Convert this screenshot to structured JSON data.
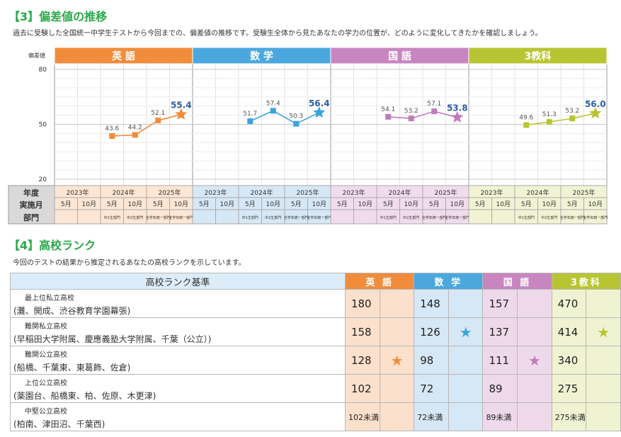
{
  "section3": {
    "title": "【3】偏差値の推移",
    "description": "過去に受験した全国統一中学生テストから今回までの、偏差値の推移です。受験生全体から見たあなたの学力の位置が、どのように変化してきたかを確認しましょう。"
  },
  "chart_data": {
    "type": "line",
    "ylabel": "偏差値",
    "ylim": [
      20,
      80
    ],
    "y_ticks": [
      "80",
      "50",
      "20"
    ],
    "row_labels": {
      "year": "年度",
      "month": "実施月",
      "division": "部門"
    },
    "years": [
      "2023年",
      "2024年",
      "2025年"
    ],
    "months": [
      "5月",
      "10月",
      "5月",
      "10月",
      "5月",
      "10月"
    ],
    "divisions": [
      "",
      "",
      "中1生部門",
      "中2生部門",
      "全学年統一部門",
      "全学年統一部門"
    ],
    "series": [
      {
        "name": "英 語",
        "color": "#f08c3c",
        "header_color": "#f08c3c",
        "col_bg": "#fde6d4",
        "values": [
          null,
          null,
          43.6,
          44.2,
          52.1,
          55.4
        ],
        "labels": [
          "",
          "",
          "43.6",
          "44.2",
          "52.1",
          "55.4"
        ]
      },
      {
        "name": "数 学",
        "color": "#3ba3dc",
        "header_color": "#4aa8de",
        "col_bg": "#d6e8f6",
        "values": [
          null,
          null,
          51.7,
          57.4,
          50.3,
          56.4
        ],
        "labels": [
          "",
          "",
          "51.7",
          "57.4",
          "50.3",
          "56.4"
        ]
      },
      {
        "name": "国 語",
        "color": "#c07cb8",
        "header_color": "#c886c0",
        "col_bg": "#f0dced",
        "values": [
          null,
          null,
          54.1,
          53.2,
          57.1,
          53.8
        ],
        "labels": [
          "",
          "",
          "54.1",
          "53.2",
          "57.1",
          "53.8"
        ]
      },
      {
        "name": "3教科",
        "color": "#b8c430",
        "header_color": "#b8c532",
        "col_bg": "#f1f4d4",
        "values": [
          null,
          null,
          49.6,
          51.3,
          53.2,
          56.0
        ],
        "labels": [
          "",
          "",
          "49.6",
          "51.3",
          "53.2",
          "56.0"
        ]
      }
    ],
    "label_colors": {
      "normal": "#555555",
      "latest": "#2e5fa0"
    },
    "grid": true
  },
  "section4": {
    "title": "【4】高校ランク",
    "description": "今回のテストの結果から推定されるあなたの高校ランクを示しています。",
    "criteria_header": "高校ランク基準",
    "subjects": [
      {
        "name": "英 語",
        "color": "#f08c3c",
        "cls": "en"
      },
      {
        "name": "数 学",
        "color": "#4aa8de",
        "cls": "ma"
      },
      {
        "name": "国 語",
        "color": "#c886c0",
        "cls": "jp"
      },
      {
        "name": "3教科",
        "color": "#b8c532",
        "cls": "al"
      }
    ],
    "rows": [
      {
        "rank": "最上位私立高校",
        "examples": "(灘、開成、渋谷教育学園幕張)",
        "values": [
          "180",
          "148",
          "157",
          "470"
        ],
        "stars": [
          "",
          "",
          "",
          ""
        ]
      },
      {
        "rank": "難関私立高校",
        "examples": "(早稲田大学附属、慶應義塾大学附属、千葉（公立）)",
        "values": [
          "158",
          "126",
          "137",
          "414"
        ],
        "stars": [
          "",
          "★",
          "",
          "★"
        ]
      },
      {
        "rank": "難関公立高校",
        "examples": "(船橋、千葉東、東葛飾、佐倉)",
        "values": [
          "128",
          "98",
          "111",
          "340"
        ],
        "stars": [
          "★",
          "",
          "★",
          ""
        ]
      },
      {
        "rank": "上位公立高校",
        "examples": "(薬園台、船橋東、柏、佐原、木更津)",
        "values": [
          "102",
          "72",
          "89",
          "275"
        ],
        "stars": [
          "",
          "",
          "",
          ""
        ]
      },
      {
        "rank": "中堅公立高校",
        "examples": "(柏南、津田沼、千葉西)",
        "values": [
          "102未満",
          "72未満",
          "89未満",
          "275未満"
        ],
        "stars": [
          "",
          "",
          "",
          ""
        ]
      }
    ]
  }
}
